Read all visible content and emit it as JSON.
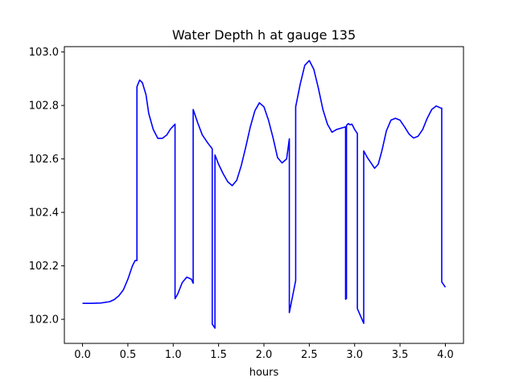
{
  "chart_data": {
    "type": "line",
    "title": "Water Depth h at gauge 135",
    "xlabel": "hours",
    "ylabel": "",
    "xlim": [
      -0.2,
      4.2
    ],
    "ylim": [
      101.91,
      103.02
    ],
    "xticks": [
      0.0,
      0.5,
      1.0,
      1.5,
      2.0,
      2.5,
      3.0,
      3.5,
      4.0
    ],
    "xtick_labels": [
      "0.0",
      "0.5",
      "1.0",
      "1.5",
      "2.0",
      "2.5",
      "3.0",
      "3.5",
      "4.0"
    ],
    "yticks": [
      102.0,
      102.2,
      102.4,
      102.6,
      102.8,
      103.0
    ],
    "ytick_labels": [
      "102.0",
      "102.2",
      "102.4",
      "102.6",
      "102.8",
      "103.0"
    ],
    "grid": false,
    "legend": "none",
    "series": [
      {
        "color": "#0000ff",
        "x": [
          0.0,
          0.1,
          0.2,
          0.3,
          0.35,
          0.4,
          0.45,
          0.5,
          0.55,
          0.58,
          0.6,
          0.6,
          0.63,
          0.66,
          0.7,
          0.73,
          0.78,
          0.83,
          0.88,
          0.93,
          0.97,
          1.02,
          1.02,
          1.05,
          1.1,
          1.15,
          1.2,
          1.22,
          1.22,
          1.27,
          1.32,
          1.38,
          1.43,
          1.43,
          1.46,
          1.46,
          1.5,
          1.55,
          1.6,
          1.65,
          1.7,
          1.75,
          1.8,
          1.85,
          1.9,
          1.95,
          2.0,
          2.05,
          2.1,
          2.15,
          2.2,
          2.25,
          2.28,
          2.28,
          2.35,
          2.35,
          2.4,
          2.45,
          2.5,
          2.55,
          2.6,
          2.65,
          2.7,
          2.75,
          2.8,
          2.85,
          2.9,
          2.9,
          2.91,
          2.91,
          2.93,
          2.95,
          2.97,
          3.0,
          3.03,
          3.03,
          3.1,
          3.1,
          3.14,
          3.18,
          3.22,
          3.26,
          3.3,
          3.35,
          3.4,
          3.45,
          3.5,
          3.55,
          3.6,
          3.65,
          3.7,
          3.75,
          3.8,
          3.85,
          3.9,
          3.95,
          3.96,
          3.96,
          4.0
        ],
        "y": [
          102.06,
          102.06,
          102.061,
          102.066,
          102.074,
          102.088,
          102.11,
          102.15,
          102.2,
          102.22,
          102.22,
          102.87,
          102.895,
          102.885,
          102.84,
          102.77,
          102.71,
          102.677,
          102.677,
          102.69,
          102.712,
          102.73,
          102.077,
          102.095,
          102.138,
          102.158,
          102.15,
          102.135,
          102.785,
          102.735,
          102.69,
          102.66,
          102.638,
          101.982,
          101.967,
          102.615,
          102.58,
          102.545,
          102.515,
          102.5,
          102.52,
          102.575,
          102.645,
          102.72,
          102.78,
          102.81,
          102.795,
          102.745,
          102.68,
          102.605,
          102.585,
          102.6,
          102.675,
          102.025,
          102.145,
          102.795,
          102.88,
          102.95,
          102.968,
          102.935,
          102.865,
          102.785,
          102.73,
          102.7,
          102.71,
          102.715,
          102.72,
          102.075,
          102.078,
          102.725,
          102.732,
          102.728,
          102.73,
          102.71,
          102.695,
          102.04,
          101.985,
          102.63,
          102.605,
          102.585,
          102.565,
          102.58,
          102.63,
          102.705,
          102.745,
          102.752,
          102.745,
          102.72,
          102.693,
          102.678,
          102.685,
          102.71,
          102.752,
          102.785,
          102.798,
          102.79,
          102.79,
          102.14,
          102.12
        ]
      }
    ]
  }
}
